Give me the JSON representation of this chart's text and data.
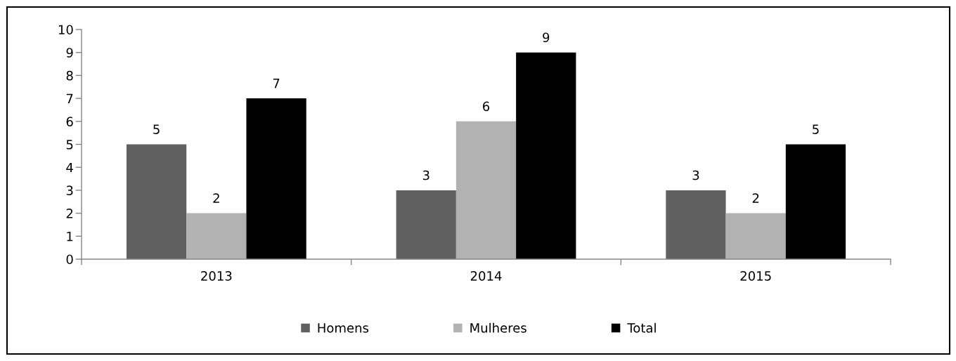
{
  "chart_data": {
    "type": "bar",
    "categories": [
      "2013",
      "2014",
      "2015"
    ],
    "series": [
      {
        "name": "Homens",
        "color": "#606060",
        "values": [
          5,
          3,
          3
        ]
      },
      {
        "name": "Mulheres",
        "color": "#b2b2b2",
        "values": [
          2,
          6,
          2
        ]
      },
      {
        "name": "Total",
        "color": "#000000",
        "values": [
          7,
          9,
          5
        ]
      }
    ],
    "ylim": [
      0,
      10
    ],
    "yticks": [
      0,
      1,
      2,
      3,
      4,
      5,
      6,
      7,
      8,
      9,
      10
    ],
    "grid": false,
    "legend": "bottom",
    "data_labels": true
  }
}
